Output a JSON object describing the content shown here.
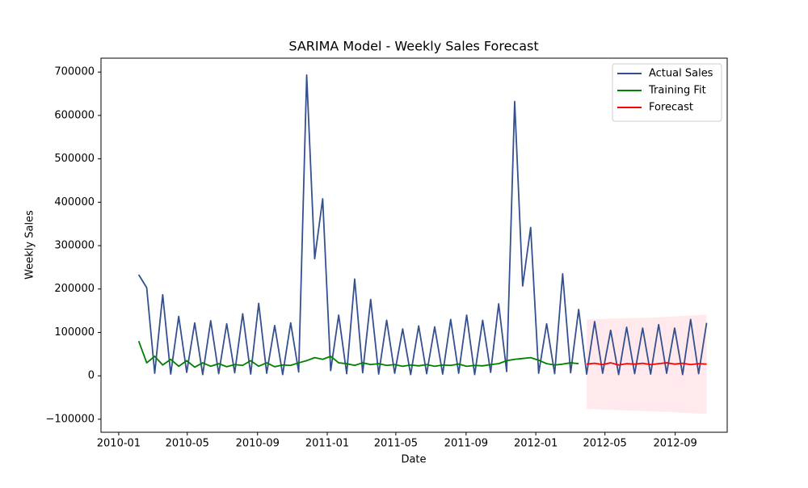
{
  "chart_data": {
    "type": "line",
    "title": "SARIMA Model - Weekly Sales Forecast",
    "x_label": "Date",
    "y_label": "Weekly Sales",
    "x": [
      "2010-02-05",
      "2010-02-19",
      "2010-03-05",
      "2010-03-19",
      "2010-04-02",
      "2010-04-16",
      "2010-04-30",
      "2010-05-14",
      "2010-05-28",
      "2010-06-11",
      "2010-06-25",
      "2010-07-09",
      "2010-07-23",
      "2010-08-06",
      "2010-08-20",
      "2010-09-03",
      "2010-09-17",
      "2010-10-01",
      "2010-10-15",
      "2010-10-29",
      "2010-11-12",
      "2010-11-26",
      "2010-12-10",
      "2010-12-24",
      "2011-01-07",
      "2011-01-21",
      "2011-02-04",
      "2011-02-18",
      "2011-03-04",
      "2011-03-18",
      "2011-04-01",
      "2011-04-15",
      "2011-04-29",
      "2011-05-13",
      "2011-05-27",
      "2011-06-10",
      "2011-06-24",
      "2011-07-08",
      "2011-07-22",
      "2011-08-05",
      "2011-08-19",
      "2011-09-02",
      "2011-09-16",
      "2011-09-30",
      "2011-10-14",
      "2011-10-28",
      "2011-11-11",
      "2011-11-25",
      "2011-12-09",
      "2011-12-23",
      "2012-01-06",
      "2012-01-20",
      "2012-02-03",
      "2012-02-17",
      "2012-03-02",
      "2012-03-16",
      "2012-03-30",
      "2012-04-13",
      "2012-04-27",
      "2012-05-11",
      "2012-05-25",
      "2012-06-08",
      "2012-06-22",
      "2012-07-06",
      "2012-07-20",
      "2012-08-03",
      "2012-08-17",
      "2012-08-31",
      "2012-09-14",
      "2012-09-28",
      "2012-10-12",
      "2012-10-26"
    ],
    "series": [
      {
        "name": "Actual Sales",
        "color": "#34508f",
        "values": [
          233000,
          203000,
          6000,
          187000,
          4000,
          137000,
          8000,
          122000,
          3000,
          127000,
          5000,
          120000,
          7000,
          143000,
          4000,
          167000,
          6000,
          116000,
          3000,
          122000,
          9000,
          693000,
          270000,
          408000,
          12000,
          140000,
          5000,
          223000,
          7000,
          176000,
          4000,
          128000,
          6000,
          108000,
          3000,
          115000,
          5000,
          113000,
          4000,
          130000,
          6000,
          140000,
          3000,
          128000,
          8000,
          166000,
          10000,
          632000,
          207000,
          342000,
          6000,
          120000,
          5000,
          235000,
          7000,
          153000,
          4000,
          125000,
          6000,
          105000,
          3000,
          112000,
          5000,
          110000,
          4000,
          118000,
          6000,
          110000,
          3000,
          130000,
          5000,
          122000
        ]
      },
      {
        "name": "Training Fit",
        "color": "#008000",
        "values": [
          80000,
          30000,
          45000,
          25000,
          38000,
          22000,
          35000,
          20000,
          30000,
          22000,
          28000,
          21000,
          26000,
          24000,
          35000,
          22000,
          30000,
          21000,
          25000,
          24000,
          30000,
          35000,
          42000,
          38000,
          45000,
          30000,
          28000,
          24000,
          30000,
          26000,
          28000,
          24000,
          26000,
          22000,
          25000,
          23000,
          26000,
          22000,
          25000,
          24000,
          27000,
          22000,
          24000,
          23000,
          26000,
          28000,
          35000,
          38000,
          40000,
          42000,
          36000,
          28000,
          25000,
          27000,
          30000,
          28000,
          null,
          null,
          null,
          null,
          null,
          null,
          null,
          null,
          null,
          null,
          null,
          null,
          null,
          null,
          null,
          null
        ]
      },
      {
        "name": "Forecast",
        "color": "#ff0000",
        "band_color": "#ffc0cb",
        "values": [
          null,
          null,
          null,
          null,
          null,
          null,
          null,
          null,
          null,
          null,
          null,
          null,
          null,
          null,
          null,
          null,
          null,
          null,
          null,
          null,
          null,
          null,
          null,
          null,
          null,
          null,
          null,
          null,
          null,
          null,
          null,
          null,
          null,
          null,
          null,
          null,
          null,
          null,
          null,
          null,
          null,
          null,
          null,
          null,
          null,
          null,
          null,
          null,
          null,
          null,
          null,
          null,
          null,
          null,
          null,
          null,
          27000,
          29000,
          26000,
          30000,
          25000,
          28000,
          27000,
          29000,
          26000,
          28000,
          30000,
          27000,
          29000,
          26000,
          28000,
          27000
        ],
        "lower": [
          null,
          null,
          null,
          null,
          null,
          null,
          null,
          null,
          null,
          null,
          null,
          null,
          null,
          null,
          null,
          null,
          null,
          null,
          null,
          null,
          null,
          null,
          null,
          null,
          null,
          null,
          null,
          null,
          null,
          null,
          null,
          null,
          null,
          null,
          null,
          null,
          null,
          null,
          null,
          null,
          null,
          null,
          null,
          null,
          null,
          null,
          null,
          null,
          null,
          null,
          null,
          null,
          null,
          null,
          null,
          null,
          -76000,
          -77000,
          -78000,
          -78500,
          -79000,
          -80000,
          -80500,
          -81000,
          -82000,
          -82500,
          -83000,
          -84000,
          -85000,
          -86000,
          -87000,
          -88000
        ],
        "upper": [
          null,
          null,
          null,
          null,
          null,
          null,
          null,
          null,
          null,
          null,
          null,
          null,
          null,
          null,
          null,
          null,
          null,
          null,
          null,
          null,
          null,
          null,
          null,
          null,
          null,
          null,
          null,
          null,
          null,
          null,
          null,
          null,
          null,
          null,
          null,
          null,
          null,
          null,
          null,
          null,
          null,
          null,
          null,
          null,
          null,
          null,
          null,
          null,
          null,
          null,
          null,
          null,
          null,
          null,
          null,
          null,
          130000,
          131000,
          131000,
          132000,
          132000,
          133000,
          133000,
          134000,
          134000,
          135000,
          136000,
          137000,
          138000,
          139000,
          140000,
          141000
        ]
      }
    ],
    "xlim": [
      "2009-12",
      "2012-12"
    ],
    "xticks": [
      "2010-01",
      "2010-05",
      "2010-09",
      "2011-01",
      "2011-05",
      "2011-09",
      "2012-01",
      "2012-05",
      "2012-09"
    ],
    "ylim": [
      -130000,
      732000
    ],
    "yticks": [
      {
        "value": -100000,
        "label": "−100000"
      },
      0,
      100000,
      200000,
      300000,
      400000,
      500000,
      600000,
      700000
    ],
    "legend": "upper right",
    "grid": false
  }
}
